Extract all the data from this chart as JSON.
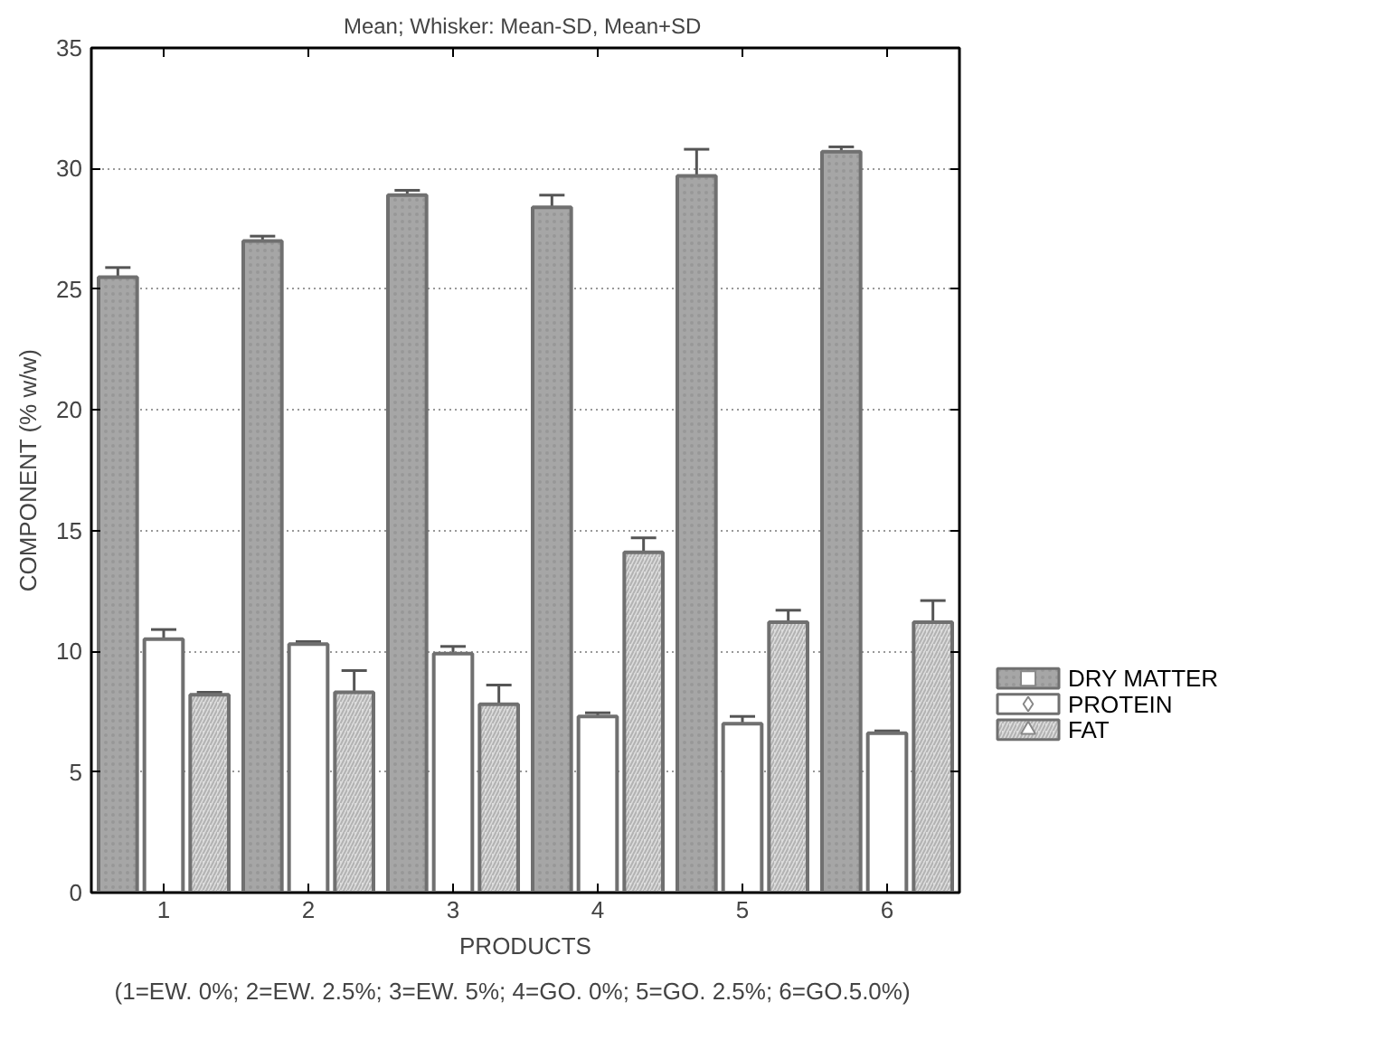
{
  "chart_data": {
    "type": "bar",
    "title": "Mean;  Whisker: Mean-SD, Mean+SD",
    "xlabel": "PRODUCTS",
    "ylabel": "COMPONENT (% w/w)",
    "annotations": [
      "(1=EW. 0%;  2=EW. 2.5%; 3=EW. 5%;  4=GO. 0%;  5=GO. 2.5%;  6=GO.5.0%)"
    ],
    "categories": [
      "1",
      "2",
      "3",
      "4",
      "5",
      "6"
    ],
    "series": [
      {
        "name": "DRY MATTER",
        "color": "#a6a6a6",
        "marker": "square",
        "values": [
          25.5,
          27.0,
          28.9,
          28.4,
          29.7,
          30.7
        ],
        "errors": [
          0.4,
          0.2,
          0.2,
          0.5,
          1.1,
          0.2
        ]
      },
      {
        "name": "PROTEIN",
        "color": "#ffffff",
        "marker": "diamond",
        "values": [
          10.5,
          10.3,
          9.9,
          7.3,
          7.0,
          6.6
        ],
        "errors": [
          0.4,
          0.1,
          0.3,
          0.15,
          0.3,
          0.1
        ]
      },
      {
        "name": "FAT",
        "color": "#dcdcdc",
        "marker": "triangle",
        "values": [
          8.2,
          8.3,
          7.8,
          14.1,
          11.2,
          11.2
        ],
        "errors": [
          0.1,
          0.9,
          0.8,
          0.6,
          0.5,
          0.9
        ]
      }
    ],
    "ylim": [
      0,
      35
    ],
    "yticks": [
      0,
      5,
      10,
      15,
      20,
      25,
      30,
      35
    ],
    "grid": "y",
    "legend": "bottom right"
  }
}
